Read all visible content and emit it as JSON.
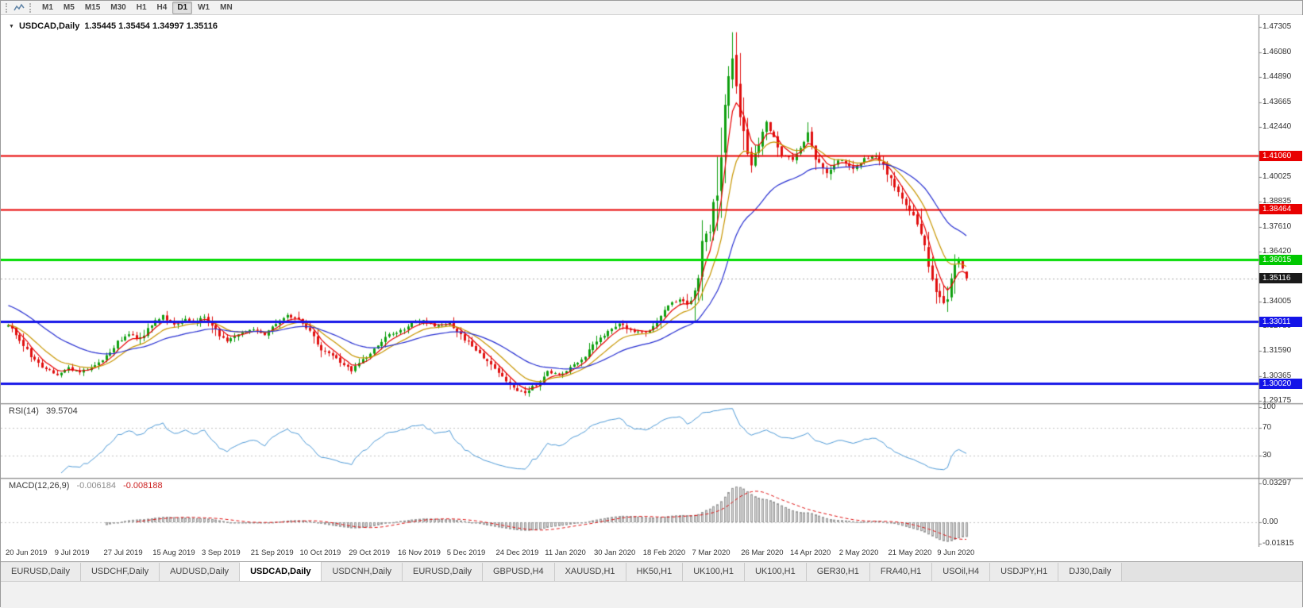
{
  "icons": {
    "symbol_dropdown": "▼"
  },
  "toolbar": {
    "timeframes": [
      "M1",
      "M5",
      "M15",
      "M30",
      "H1",
      "H4",
      "D1",
      "W1",
      "MN"
    ],
    "active": "D1"
  },
  "chart": {
    "title": "USDCAD,Daily",
    "ohlc": "1.35445 1.35454 1.34997 1.35116"
  },
  "rsi": {
    "label": "RSI(14)",
    "value": "39.5704",
    "scale": [
      "100",
      "70",
      "30"
    ],
    "levels": [
      70,
      30
    ],
    "line_color": "#4f9bd8"
  },
  "macd": {
    "label": "MACD(12,26,9)",
    "value_main": "-0.006184",
    "value_signal": "-0.008188",
    "scale": [
      {
        "label": "0.03297",
        "value": 0.03297
      },
      {
        "label": "0.00",
        "value": 0
      },
      {
        "label": "-0.01815",
        "value": -0.01815
      }
    ],
    "histogram_color": "#d6d6d6",
    "signal_color": "#e01414"
  },
  "price_axis": {
    "ticks": [
      "1.47305",
      "1.46080",
      "1.44890",
      "1.43665",
      "1.42440",
      "1.40025",
      "1.38835",
      "1.37610",
      "1.36420",
      "1.34005",
      "1.32780",
      "1.31590",
      "1.30365",
      "1.29175"
    ],
    "markers": [
      {
        "name": "resistance-price-label-1",
        "label": "1.41060",
        "value": 1.4106,
        "bg": "#e80000",
        "fg": "#ffffff"
      },
      {
        "name": "resistance-price-label-2",
        "label": "1.38464",
        "value": 1.38464,
        "bg": "#e80000",
        "fg": "#ffffff"
      },
      {
        "name": "pivot-price-label",
        "label": "1.36015",
        "value": 1.36015,
        "bg": "#00c800",
        "fg": "#ffffff"
      },
      {
        "name": "current-price-label",
        "label": "1.35116",
        "value": 1.35116,
        "bg": "#1a1a1a",
        "fg": "#ffffff"
      },
      {
        "name": "support-price-label-1",
        "label": "1.33011",
        "value": 1.33011,
        "bg": "#1414e8",
        "fg": "#ffffff"
      },
      {
        "name": "support-price-label-2",
        "label": "1.30020",
        "value": 1.3002,
        "bg": "#1414e8",
        "fg": "#ffffff"
      }
    ]
  },
  "time_axis": {
    "bars_per_label": 13,
    "labels": [
      "20 Jun 2019",
      "9 Jul 2019",
      "27 Jul 2019",
      "15 Aug 2019",
      "3 Sep 2019",
      "21 Sep 2019",
      "10 Oct 2019",
      "29 Oct 2019",
      "16 Nov 2019",
      "5 Dec 2019",
      "24 Dec 2019",
      "11 Jan 2020",
      "30 Jan 2020",
      "18 Feb 2020",
      "7 Mar 2020",
      "26 Mar 2020",
      "14 Apr 2020",
      "2 May 2020",
      "21 May 2020",
      "9 Jun 2020"
    ]
  },
  "tabs": [
    {
      "label": "EURUSD,Daily"
    },
    {
      "label": "USDCHF,Daily"
    },
    {
      "label": "AUDUSD,Daily"
    },
    {
      "label": "USDCAD,Daily",
      "active": true
    },
    {
      "label": "USDCNH,Daily"
    },
    {
      "label": "EURUSD,Daily"
    },
    {
      "label": "GBPUSD,H4"
    },
    {
      "label": "XAUUSD,H1"
    },
    {
      "label": "HK50,H1"
    },
    {
      "label": "UK100,H1"
    },
    {
      "label": "UK100,H1"
    },
    {
      "label": "GER30,H1"
    },
    {
      "label": "FRA40,H1"
    },
    {
      "label": "USOil,H4"
    },
    {
      "label": "USDJPY,H1"
    },
    {
      "label": "DJ30,Daily"
    }
  ],
  "chart_data": {
    "type": "candlestick",
    "symbol": "USDCAD",
    "period": "Daily",
    "bars": 255,
    "current_price": 1.35116,
    "last_bar": {
      "open": 1.35445,
      "high": 1.35454,
      "low": 1.34997,
      "close": 1.35116
    },
    "colors": {
      "up": "#10a010",
      "down": "#e01010"
    },
    "view": {
      "price_at_top": 1.47883,
      "price_at_bottom": 1.28638
    },
    "hlines": [
      {
        "value": 1.4106,
        "color": "#e80000",
        "width": 2
      },
      {
        "value": 1.38464,
        "color": "#e80000",
        "width": 2
      },
      {
        "value": 1.36015,
        "color": "#00dc00",
        "width": 3
      },
      {
        "value": 1.33011,
        "color": "#1414e8",
        "width": 3
      },
      {
        "value": 1.3002,
        "color": "#1414e8",
        "width": 3
      }
    ],
    "moving_averages": [
      {
        "period": 5,
        "color": "#e80000"
      },
      {
        "period": 12,
        "color": "#c89600"
      },
      {
        "period": 30,
        "color": "#2830d2",
        "init": 1.338
      }
    ],
    "indicators": [
      {
        "name": "RSI",
        "params": [
          14
        ],
        "last": 39.5704
      },
      {
        "name": "MACD",
        "params": [
          12,
          26,
          9
        ],
        "last_main": -0.006184,
        "last_signal": -0.008188
      }
    ],
    "close_waypoints": [
      [
        0,
        1.328
      ],
      [
        2,
        1.324
      ],
      [
        4,
        1.319
      ],
      [
        6,
        1.313
      ],
      [
        9,
        1.3085
      ],
      [
        13,
        1.3045
      ],
      [
        16,
        1.3075
      ],
      [
        19,
        1.3055
      ],
      [
        22,
        1.3082
      ],
      [
        26,
        1.3135
      ],
      [
        29,
        1.3205
      ],
      [
        32,
        1.3238
      ],
      [
        35,
        1.3215
      ],
      [
        37,
        1.3262
      ],
      [
        39,
        1.33
      ],
      [
        41,
        1.3328
      ],
      [
        44,
        1.3286
      ],
      [
        47,
        1.3312
      ],
      [
        50,
        1.3295
      ],
      [
        52,
        1.3332
      ],
      [
        54,
        1.3288
      ],
      [
        56,
        1.3232
      ],
      [
        58,
        1.3205
      ],
      [
        61,
        1.3238
      ],
      [
        65,
        1.3265
      ],
      [
        68,
        1.3242
      ],
      [
        71,
        1.3288
      ],
      [
        74,
        1.3328
      ],
      [
        77,
        1.3312
      ],
      [
        80,
        1.3252
      ],
      [
        83,
        1.3172
      ],
      [
        86,
        1.3132
      ],
      [
        89,
        1.3092
      ],
      [
        91,
        1.3068
      ],
      [
        94,
        1.3112
      ],
      [
        97,
        1.3172
      ],
      [
        100,
        1.3232
      ],
      [
        104,
        1.3256
      ],
      [
        107,
        1.3292
      ],
      [
        110,
        1.3306
      ],
      [
        113,
        1.3282
      ],
      [
        117,
        1.3292
      ],
      [
        120,
        1.3238
      ],
      [
        123,
        1.3178
      ],
      [
        126,
        1.3128
      ],
      [
        129,
        1.3072
      ],
      [
        132,
        1.3018
      ],
      [
        135,
        1.2968
      ],
      [
        137,
        1.296
      ],
      [
        140,
        1.2996
      ],
      [
        143,
        1.3056
      ],
      [
        146,
        1.3046
      ],
      [
        149,
        1.3076
      ],
      [
        152,
        1.3116
      ],
      [
        156,
        1.3206
      ],
      [
        159,
        1.3256
      ],
      [
        162,
        1.3296
      ],
      [
        165,
        1.3256
      ],
      [
        169,
        1.3252
      ],
      [
        172,
        1.3292
      ],
      [
        174,
        1.3352
      ],
      [
        176,
        1.3396
      ],
      [
        178,
        1.3406
      ],
      [
        180,
        1.3386
      ],
      [
        182,
        1.3436
      ],
      [
        184,
        1.366
      ],
      [
        186,
        1.3762
      ],
      [
        188,
        1.3962
      ],
      [
        190,
        1.4332
      ],
      [
        192,
        1.4622
      ],
      [
        193,
        1.4462
      ],
      [
        194,
        1.4312
      ],
      [
        195,
        1.4212
      ],
      [
        197,
        1.4062
      ],
      [
        199,
        1.4162
      ],
      [
        201,
        1.4256
      ],
      [
        203,
        1.4182
      ],
      [
        205,
        1.4106
      ],
      [
        208,
        1.4092
      ],
      [
        210,
        1.4152
      ],
      [
        212,
        1.4216
      ],
      [
        214,
        1.4102
      ],
      [
        217,
        1.4012
      ],
      [
        219,
        1.4062
      ],
      [
        221,
        1.4092
      ],
      [
        224,
        1.4036
      ],
      [
        227,
        1.4092
      ],
      [
        230,
        1.4106
      ],
      [
        232,
        1.4056
      ],
      [
        234,
        1.3986
      ],
      [
        237,
        1.3906
      ],
      [
        240,
        1.3816
      ],
      [
        242,
        1.3732
      ],
      [
        244,
        1.3586
      ],
      [
        246,
        1.3456
      ],
      [
        248,
        1.3376
      ],
      [
        249,
        1.3422
      ],
      [
        250,
        1.3492
      ],
      [
        251,
        1.3556
      ],
      [
        252,
        1.3612
      ],
      [
        253,
        1.3566
      ],
      [
        254,
        1.3512
      ]
    ]
  }
}
